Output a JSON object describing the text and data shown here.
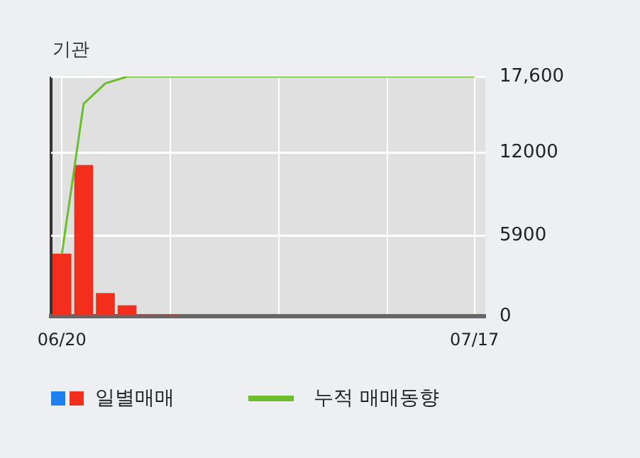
{
  "chart_data": {
    "type": "bar",
    "title": "기관",
    "categories": [
      "06/20",
      null,
      null,
      null,
      null,
      null,
      null,
      null,
      null,
      null,
      null,
      null,
      null,
      null,
      null,
      null,
      null,
      null,
      null,
      "07/17"
    ],
    "series": [
      {
        "name": "일별매매",
        "color": "#f42e1c",
        "values": [
          4600,
          11100,
          1700,
          800,
          100,
          100,
          0,
          0,
          0,
          0,
          0,
          0,
          0,
          0,
          0,
          0,
          0,
          0,
          0,
          0
        ]
      },
      {
        "name": "누적 매매동향",
        "type": "line",
        "color": "#6cbd2c",
        "values": [
          4600,
          15600,
          17100,
          17600,
          17600,
          17600,
          17600,
          17600,
          17600,
          17600,
          17600,
          17600,
          17600,
          17600,
          17600,
          17600,
          17600,
          17600,
          17600,
          17600
        ]
      }
    ],
    "ylim": [
      0,
      17600
    ],
    "yticks": [
      0,
      5900,
      12000,
      {
        "value": 17600,
        "label": "17,600"
      }
    ],
    "grid": true,
    "legend": "bottom",
    "marker": "none"
  }
}
